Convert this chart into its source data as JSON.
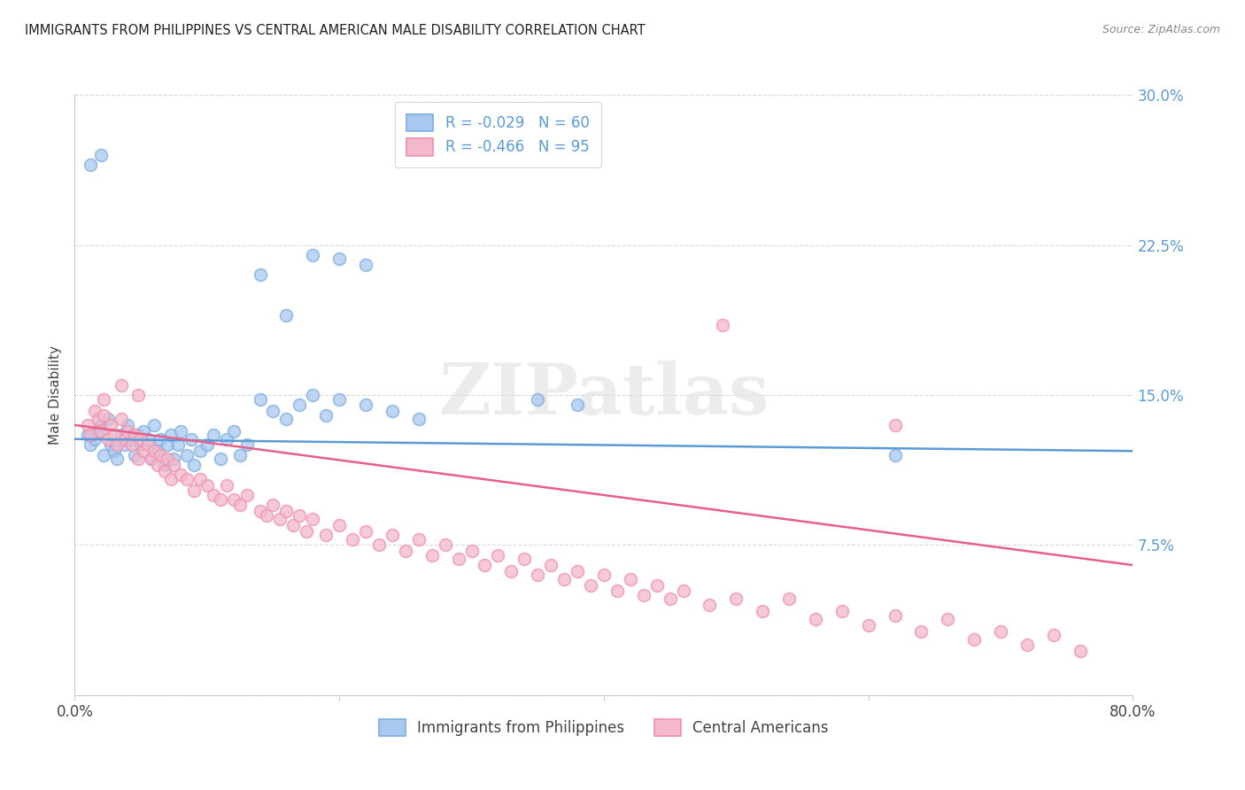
{
  "title": "IMMIGRANTS FROM PHILIPPINES VS CENTRAL AMERICAN MALE DISABILITY CORRELATION CHART",
  "source": "Source: ZipAtlas.com",
  "ylabel": "Male Disability",
  "xlim": [
    0.0,
    0.8
  ],
  "ylim": [
    0.0,
    0.3
  ],
  "yticks": [
    0.0,
    0.075,
    0.15,
    0.225,
    0.3
  ],
  "yticklabels": [
    "",
    "7.5%",
    "15.0%",
    "22.5%",
    "30.0%"
  ],
  "xticks": [
    0.0,
    0.2,
    0.4,
    0.6,
    0.8
  ],
  "xticklabels": [
    "0.0%",
    "",
    "",
    "",
    "80.0%"
  ],
  "legend_labels": [
    "Immigrants from Philippines",
    "Central Americans"
  ],
  "legend_text_blue": [
    "R = -0.029   N = 60",
    "R = -0.466   N = 95"
  ],
  "blue_fill_color": "#a8c8f0",
  "pink_fill_color": "#f4b8cc",
  "blue_scatter_color": "#7aaee0",
  "pink_scatter_color": "#f090aa",
  "blue_line_color": "#5b9bd5",
  "pink_line_color": "#e8608a",
  "tick_label_color": "#5b9bd5",
  "legend_text_color": "#5b9bd5",
  "watermark": "ZIPatlas",
  "background_color": "#ffffff",
  "grid_color": "#d0d0d0",
  "blue_x": [
    0.01,
    0.012,
    0.015,
    0.018,
    0.02,
    0.022,
    0.025,
    0.027,
    0.03,
    0.032,
    0.035,
    0.038,
    0.04,
    0.043,
    0.045,
    0.048,
    0.05,
    0.052,
    0.055,
    0.058,
    0.06,
    0.063,
    0.065,
    0.068,
    0.07,
    0.073,
    0.075,
    0.078,
    0.08,
    0.085,
    0.088,
    0.09,
    0.095,
    0.1,
    0.105,
    0.11,
    0.115,
    0.12,
    0.125,
    0.13,
    0.14,
    0.15,
    0.16,
    0.17,
    0.18,
    0.19,
    0.2,
    0.22,
    0.24,
    0.26,
    0.14,
    0.16,
    0.18,
    0.2,
    0.22,
    0.35,
    0.38,
    0.62,
    0.012,
    0.02
  ],
  "blue_y": [
    0.13,
    0.125,
    0.128,
    0.132,
    0.135,
    0.12,
    0.138,
    0.125,
    0.122,
    0.118,
    0.13,
    0.125,
    0.135,
    0.128,
    0.12,
    0.13,
    0.125,
    0.132,
    0.128,
    0.118,
    0.135,
    0.122,
    0.128,
    0.115,
    0.125,
    0.13,
    0.118,
    0.125,
    0.132,
    0.12,
    0.128,
    0.115,
    0.122,
    0.125,
    0.13,
    0.118,
    0.128,
    0.132,
    0.12,
    0.125,
    0.148,
    0.142,
    0.138,
    0.145,
    0.15,
    0.14,
    0.148,
    0.145,
    0.142,
    0.138,
    0.21,
    0.19,
    0.22,
    0.218,
    0.215,
    0.148,
    0.145,
    0.12,
    0.265,
    0.27
  ],
  "pink_x": [
    0.01,
    0.012,
    0.015,
    0.018,
    0.02,
    0.022,
    0.025,
    0.027,
    0.03,
    0.032,
    0.035,
    0.038,
    0.04,
    0.043,
    0.045,
    0.048,
    0.05,
    0.052,
    0.055,
    0.058,
    0.06,
    0.063,
    0.065,
    0.068,
    0.07,
    0.073,
    0.075,
    0.08,
    0.085,
    0.09,
    0.095,
    0.1,
    0.105,
    0.11,
    0.115,
    0.12,
    0.125,
    0.13,
    0.14,
    0.145,
    0.15,
    0.155,
    0.16,
    0.165,
    0.17,
    0.175,
    0.18,
    0.19,
    0.2,
    0.21,
    0.22,
    0.23,
    0.24,
    0.25,
    0.26,
    0.27,
    0.28,
    0.29,
    0.3,
    0.31,
    0.32,
    0.33,
    0.34,
    0.35,
    0.36,
    0.37,
    0.38,
    0.39,
    0.4,
    0.41,
    0.42,
    0.43,
    0.44,
    0.45,
    0.46,
    0.48,
    0.5,
    0.52,
    0.54,
    0.56,
    0.58,
    0.6,
    0.62,
    0.64,
    0.66,
    0.68,
    0.7,
    0.72,
    0.74,
    0.76,
    0.022,
    0.035,
    0.048,
    0.49,
    0.62
  ],
  "pink_y": [
    0.135,
    0.13,
    0.142,
    0.138,
    0.132,
    0.14,
    0.128,
    0.135,
    0.13,
    0.125,
    0.138,
    0.128,
    0.132,
    0.125,
    0.13,
    0.118,
    0.128,
    0.122,
    0.125,
    0.118,
    0.122,
    0.115,
    0.12,
    0.112,
    0.118,
    0.108,
    0.115,
    0.11,
    0.108,
    0.102,
    0.108,
    0.105,
    0.1,
    0.098,
    0.105,
    0.098,
    0.095,
    0.1,
    0.092,
    0.09,
    0.095,
    0.088,
    0.092,
    0.085,
    0.09,
    0.082,
    0.088,
    0.08,
    0.085,
    0.078,
    0.082,
    0.075,
    0.08,
    0.072,
    0.078,
    0.07,
    0.075,
    0.068,
    0.072,
    0.065,
    0.07,
    0.062,
    0.068,
    0.06,
    0.065,
    0.058,
    0.062,
    0.055,
    0.06,
    0.052,
    0.058,
    0.05,
    0.055,
    0.048,
    0.052,
    0.045,
    0.048,
    0.042,
    0.048,
    0.038,
    0.042,
    0.035,
    0.04,
    0.032,
    0.038,
    0.028,
    0.032,
    0.025,
    0.03,
    0.022,
    0.148,
    0.155,
    0.15,
    0.185,
    0.135
  ]
}
